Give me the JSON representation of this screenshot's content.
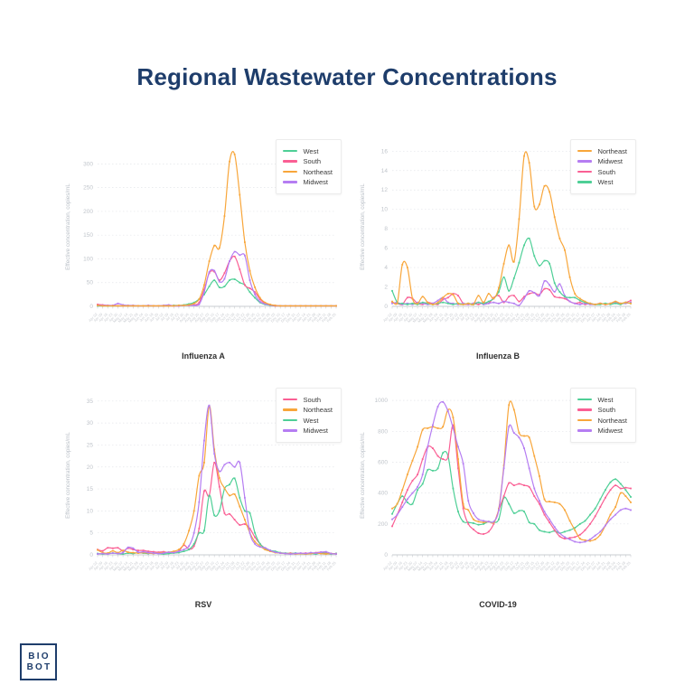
{
  "page": {
    "title": "Regional Wastewater Concentrations",
    "title_color": "#1e3d6b",
    "background": "#ffffff"
  },
  "logo": {
    "line1": "BIO",
    "line2": "BOT",
    "color": "#1e3d6b"
  },
  "colors": {
    "West": "#4ecf96",
    "South": "#fa5f94",
    "Northeast": "#f8a63a",
    "Midwest": "#b57df2"
  },
  "axis_style": {
    "ylabel_color": "#bcc2c9",
    "tick_label_color": "#c0c5cb",
    "grid_color": "#e3e5e9",
    "axis_line_color": "#b8bdc3"
  },
  "x_labels": [
    "Apr 02",
    "Apr 09",
    "Apr 16",
    "Apr 23",
    "Apr 30",
    "May 07",
    "May 14",
    "May 21",
    "May 28",
    "Jun 04",
    "Jun 11",
    "Jun 18",
    "Jun 25",
    "Jul 02",
    "Jul 09",
    "Jul 16",
    "Jul 23",
    "Jul 30",
    "Aug 06",
    "Aug 13",
    "Aug 20",
    "Aug 27",
    "Sep 03",
    "Sep 10",
    "Sep 17",
    "Sep 24",
    "Oct 01",
    "Oct 08",
    "Oct 15",
    "Oct 22",
    "Oct 29",
    "Nov 05",
    "Nov 12",
    "Nov 19",
    "Nov 26",
    "Dec 03",
    "Dec 10",
    "Dec 17",
    "Dec 24",
    "Dec 31",
    "Jan 07",
    "Jan 14",
    "Jan 21",
    "Jan 28",
    "Feb 04",
    "Feb 11",
    "Feb 18",
    "Feb 25"
  ],
  "chart_data": [
    {
      "type": "line",
      "title": "Influenza A",
      "ylabel": "Effective concentration, copies/mL",
      "ylim": [
        0,
        335
      ],
      "yticks": [
        0,
        50,
        100,
        150,
        200,
        250,
        300
      ],
      "grid": "horizontal-dashed",
      "legend_position": "top-right",
      "legend": [
        "West",
        "South",
        "Northeast",
        "Midwest"
      ],
      "series": [
        {
          "name": "West",
          "values": [
            1,
            1,
            1,
            1,
            1,
            1,
            1,
            1,
            1,
            1,
            1,
            1,
            1,
            1,
            1,
            2,
            2,
            3,
            5,
            8,
            15,
            25,
            42,
            55,
            40,
            42,
            55,
            57,
            50,
            45,
            30,
            18,
            8,
            4,
            2,
            1,
            1,
            1,
            1,
            1,
            1,
            1,
            1,
            1,
            1,
            1,
            1,
            1
          ]
        },
        {
          "name": "South",
          "values": [
            4,
            3,
            2,
            2,
            1,
            1,
            1,
            1,
            1,
            1,
            1,
            1,
            1,
            1,
            1,
            1,
            1,
            2,
            2,
            3,
            8,
            35,
            70,
            73,
            55,
            70,
            95,
            105,
            78,
            45,
            38,
            30,
            15,
            6,
            3,
            1,
            1,
            1,
            1,
            1,
            1,
            1,
            1,
            1,
            1,
            1,
            1,
            1
          ]
        },
        {
          "name": "Midwest",
          "values": [
            2,
            2,
            2,
            2,
            6,
            3,
            2,
            2,
            1,
            1,
            2,
            1,
            1,
            2,
            3,
            1,
            1,
            2,
            2,
            2,
            4,
            30,
            72,
            75,
            52,
            58,
            95,
            115,
            108,
            107,
            55,
            25,
            10,
            5,
            3,
            2,
            1,
            1,
            1,
            1,
            1,
            1,
            1,
            1,
            1,
            1,
            1,
            1
          ]
        },
        {
          "name": "Northeast",
          "values": [
            2,
            1,
            1,
            1,
            1,
            1,
            1,
            1,
            1,
            1,
            1,
            1,
            1,
            1,
            1,
            1,
            2,
            2,
            3,
            6,
            15,
            45,
            95,
            128,
            123,
            190,
            305,
            320,
            235,
            135,
            75,
            40,
            18,
            8,
            4,
            2,
            1,
            1,
            1,
            1,
            1,
            1,
            1,
            1,
            1,
            1,
            1,
            1
          ]
        }
      ]
    },
    {
      "type": "line",
      "title": "Influenza B",
      "ylabel": "Effective concentration, copies/mL",
      "ylim": [
        0,
        16.4
      ],
      "yticks": [
        0,
        2,
        4,
        6,
        8,
        10,
        12,
        14,
        16
      ],
      "grid": "horizontal-dashed",
      "legend_position": "top-right",
      "legend": [
        "Northeast",
        "Midwest",
        "South",
        "West"
      ],
      "series": [
        {
          "name": "South",
          "values": [
            0.4,
            0.3,
            0.2,
            0.9,
            0.8,
            0.3,
            0.2,
            0.4,
            0.3,
            0.2,
            0.7,
            0.9,
            1.3,
            1.1,
            0.3,
            0.2,
            0.3,
            0.2,
            0.4,
            0.3,
            0.9,
            1.1,
            0.4,
            1.0,
            1.1,
            0.5,
            1.0,
            1.3,
            1.4,
            1.2,
            1.8,
            1.7,
            1.0,
            0.9,
            0.8,
            0.5,
            0.3,
            0.4,
            0.2,
            0.3,
            0.2,
            0.3,
            0.2,
            0.3,
            0.4,
            0.3,
            0.4,
            0.6
          ]
        },
        {
          "name": "Midwest",
          "values": [
            0.3,
            0.4,
            0.2,
            0.3,
            0.2,
            0.4,
            0.3,
            0.2,
            0.3,
            0.6,
            0.9,
            0.4,
            0.3,
            0.2,
            0.3,
            0.2,
            0.3,
            0.4,
            0.2,
            0.3,
            0.4,
            0.3,
            0.5,
            0.4,
            0.3,
            0.1,
            0.8,
            1.6,
            1.4,
            1.1,
            2.6,
            2.2,
            1.5,
            2.3,
            1.1,
            0.5,
            0.3,
            0.2,
            0.3,
            0.2,
            0.2,
            0.3,
            0.2,
            0.3,
            0.4,
            0.3,
            0.3,
            0.4
          ]
        },
        {
          "name": "West",
          "values": [
            1.6,
            0.4,
            0.3,
            0.2,
            0.3,
            0.2,
            0.4,
            0.3,
            0.2,
            0.3,
            0.4,
            0.3,
            0.2,
            0.3,
            0.2,
            0.3,
            0.2,
            0.4,
            0.3,
            0.5,
            0.8,
            1.5,
            3.0,
            1.6,
            2.9,
            4.5,
            6.3,
            7.0,
            5.2,
            4.2,
            4.7,
            4.4,
            2.4,
            1.5,
            1.0,
            0.9,
            0.9,
            0.6,
            0.4,
            0.3,
            0.2,
            0.2,
            0.3,
            0.2,
            0.3,
            0.2,
            0.4,
            0.3
          ]
        },
        {
          "name": "Northeast",
          "values": [
            0.5,
            0.3,
            4.3,
            4.0,
            0.8,
            0.3,
            1.0,
            0.4,
            0.2,
            0.4,
            0.9,
            1.3,
            1.2,
            0.3,
            0.2,
            0.3,
            0.2,
            1.1,
            0.4,
            1.3,
            0.8,
            1.9,
            4.4,
            6.3,
            4.6,
            9.0,
            15.5,
            14.8,
            10.3,
            10.5,
            12.4,
            11.8,
            9.2,
            7.0,
            5.8,
            3.0,
            1.3,
            0.8,
            0.5,
            0.3,
            0.2,
            0.3,
            0.2,
            0.3,
            0.5,
            0.3,
            0.4,
            0.3
          ]
        }
      ]
    },
    {
      "type": "line",
      "title": "RSV",
      "ylabel": "Effective concentration, copies/mL",
      "ylim": [
        0,
        36.2
      ],
      "yticks": [
        0,
        5,
        10,
        15,
        20,
        25,
        30,
        35
      ],
      "grid": "horizontal-dashed",
      "legend_position": "top-right",
      "legend": [
        "South",
        "Northeast",
        "West",
        "Midwest"
      ],
      "series": [
        {
          "name": "South",
          "values": [
            1.2,
            0.9,
            1.6,
            1.5,
            1.6,
            0.9,
            1.5,
            1.2,
            1.0,
            1.0,
            0.8,
            0.7,
            0.6,
            0.7,
            0.5,
            0.6,
            0.8,
            2.2,
            1.3,
            2.0,
            6.0,
            14.5,
            13.5,
            21.0,
            15.5,
            9.5,
            9.3,
            8.0,
            6.8,
            7.0,
            6.0,
            4.0,
            2.5,
            1.5,
            1.0,
            0.6,
            0.4,
            0.3,
            0.4,
            0.3,
            0.3,
            0.4,
            0.3,
            0.5,
            0.6,
            0.4,
            0.3,
            0.3
          ]
        },
        {
          "name": "West",
          "values": [
            0.3,
            0.2,
            0.3,
            0.4,
            0.3,
            0.2,
            0.4,
            0.3,
            0.5,
            0.4,
            0.3,
            0.4,
            0.3,
            0.2,
            0.3,
            0.4,
            0.5,
            0.8,
            1.2,
            2.5,
            5.0,
            5.5,
            13.5,
            9.0,
            10.0,
            15.0,
            16.0,
            17.4,
            13.0,
            10.0,
            9.5,
            5.0,
            2.5,
            1.5,
            1.0,
            0.8,
            0.5,
            0.4,
            0.3,
            0.4,
            0.3,
            0.2,
            0.3,
            0.2,
            0.4,
            0.3,
            0.2,
            0.3
          ]
        },
        {
          "name": "Northeast",
          "values": [
            1.1,
            0.5,
            0.4,
            0.9,
            0.5,
            1.0,
            0.6,
            0.5,
            0.4,
            0.5,
            0.4,
            0.3,
            0.4,
            0.5,
            0.6,
            0.8,
            1.2,
            2.5,
            5.5,
            10.0,
            18.0,
            21.0,
            33.9,
            24.0,
            17.5,
            15.2,
            13.5,
            13.8,
            11.0,
            8.0,
            5.0,
            3.0,
            2.0,
            1.2,
            0.8,
            0.5,
            0.4,
            0.3,
            0.3,
            0.2,
            0.3,
            0.2,
            0.3,
            0.4,
            0.3,
            0.2,
            0.3,
            0.2
          ]
        },
        {
          "name": "Midwest",
          "values": [
            0.2,
            0.3,
            0.2,
            0.4,
            0.3,
            0.5,
            1.7,
            1.5,
            0.6,
            0.7,
            0.5,
            0.4,
            0.3,
            0.4,
            0.6,
            0.5,
            0.8,
            1.2,
            2.0,
            5.0,
            12.0,
            26.0,
            34.0,
            23.0,
            19.0,
            20.5,
            21.0,
            20.0,
            21.0,
            13.0,
            5.0,
            2.5,
            1.8,
            1.6,
            1.0,
            0.6,
            0.4,
            0.3,
            0.2,
            0.3,
            0.4,
            0.3,
            0.5,
            0.4,
            0.6,
            0.7,
            0.3,
            0.2
          ]
        }
      ]
    },
    {
      "type": "line",
      "title": "COVID-19",
      "ylabel": "Effective concentration, copies/mL",
      "ylim": [
        0,
        1030
      ],
      "yticks": [
        0,
        200,
        400,
        600,
        800,
        1000
      ],
      "grid": "horizontal-dashed",
      "legend_position": "top-right",
      "legend": [
        "West",
        "South",
        "Northeast",
        "Midwest"
      ],
      "series": [
        {
          "name": "West",
          "values": [
            265,
            330,
            380,
            340,
            330,
            420,
            460,
            550,
            545,
            560,
            660,
            640,
            430,
            280,
            215,
            210,
            205,
            195,
            200,
            215,
            210,
            230,
            370,
            330,
            270,
            285,
            280,
            210,
            200,
            160,
            150,
            145,
            155,
            140,
            150,
            160,
            175,
            200,
            220,
            260,
            300,
            360,
            420,
            470,
            490,
            460,
            420,
            375
          ]
        },
        {
          "name": "South",
          "values": [
            185,
            260,
            340,
            420,
            480,
            520,
            620,
            700,
            690,
            640,
            620,
            635,
            840,
            560,
            300,
            200,
            165,
            140,
            135,
            150,
            200,
            290,
            380,
            465,
            450,
            460,
            450,
            440,
            380,
            330,
            260,
            210,
            160,
            120,
            105,
            110,
            115,
            130,
            160,
            200,
            250,
            310,
            370,
            420,
            450,
            430,
            435,
            430
          ]
        },
        {
          "name": "Northeast",
          "values": [
            300,
            330,
            420,
            520,
            610,
            700,
            810,
            820,
            830,
            820,
            830,
            940,
            890,
            620,
            330,
            290,
            230,
            215,
            210,
            215,
            210,
            300,
            580,
            970,
            940,
            790,
            770,
            760,
            640,
            510,
            360,
            345,
            340,
            330,
            290,
            220,
            160,
            105,
            95,
            90,
            100,
            130,
            190,
            260,
            310,
            400,
            380,
            340
          ]
        },
        {
          "name": "Midwest",
          "values": [
            230,
            260,
            310,
            360,
            400,
            440,
            520,
            700,
            840,
            960,
            990,
            930,
            820,
            700,
            590,
            350,
            270,
            230,
            220,
            215,
            215,
            290,
            560,
            830,
            790,
            760,
            690,
            560,
            430,
            350,
            280,
            230,
            180,
            140,
            115,
            100,
            85,
            80,
            85,
            100,
            125,
            150,
            190,
            230,
            260,
            290,
            300,
            290
          ]
        }
      ]
    }
  ]
}
